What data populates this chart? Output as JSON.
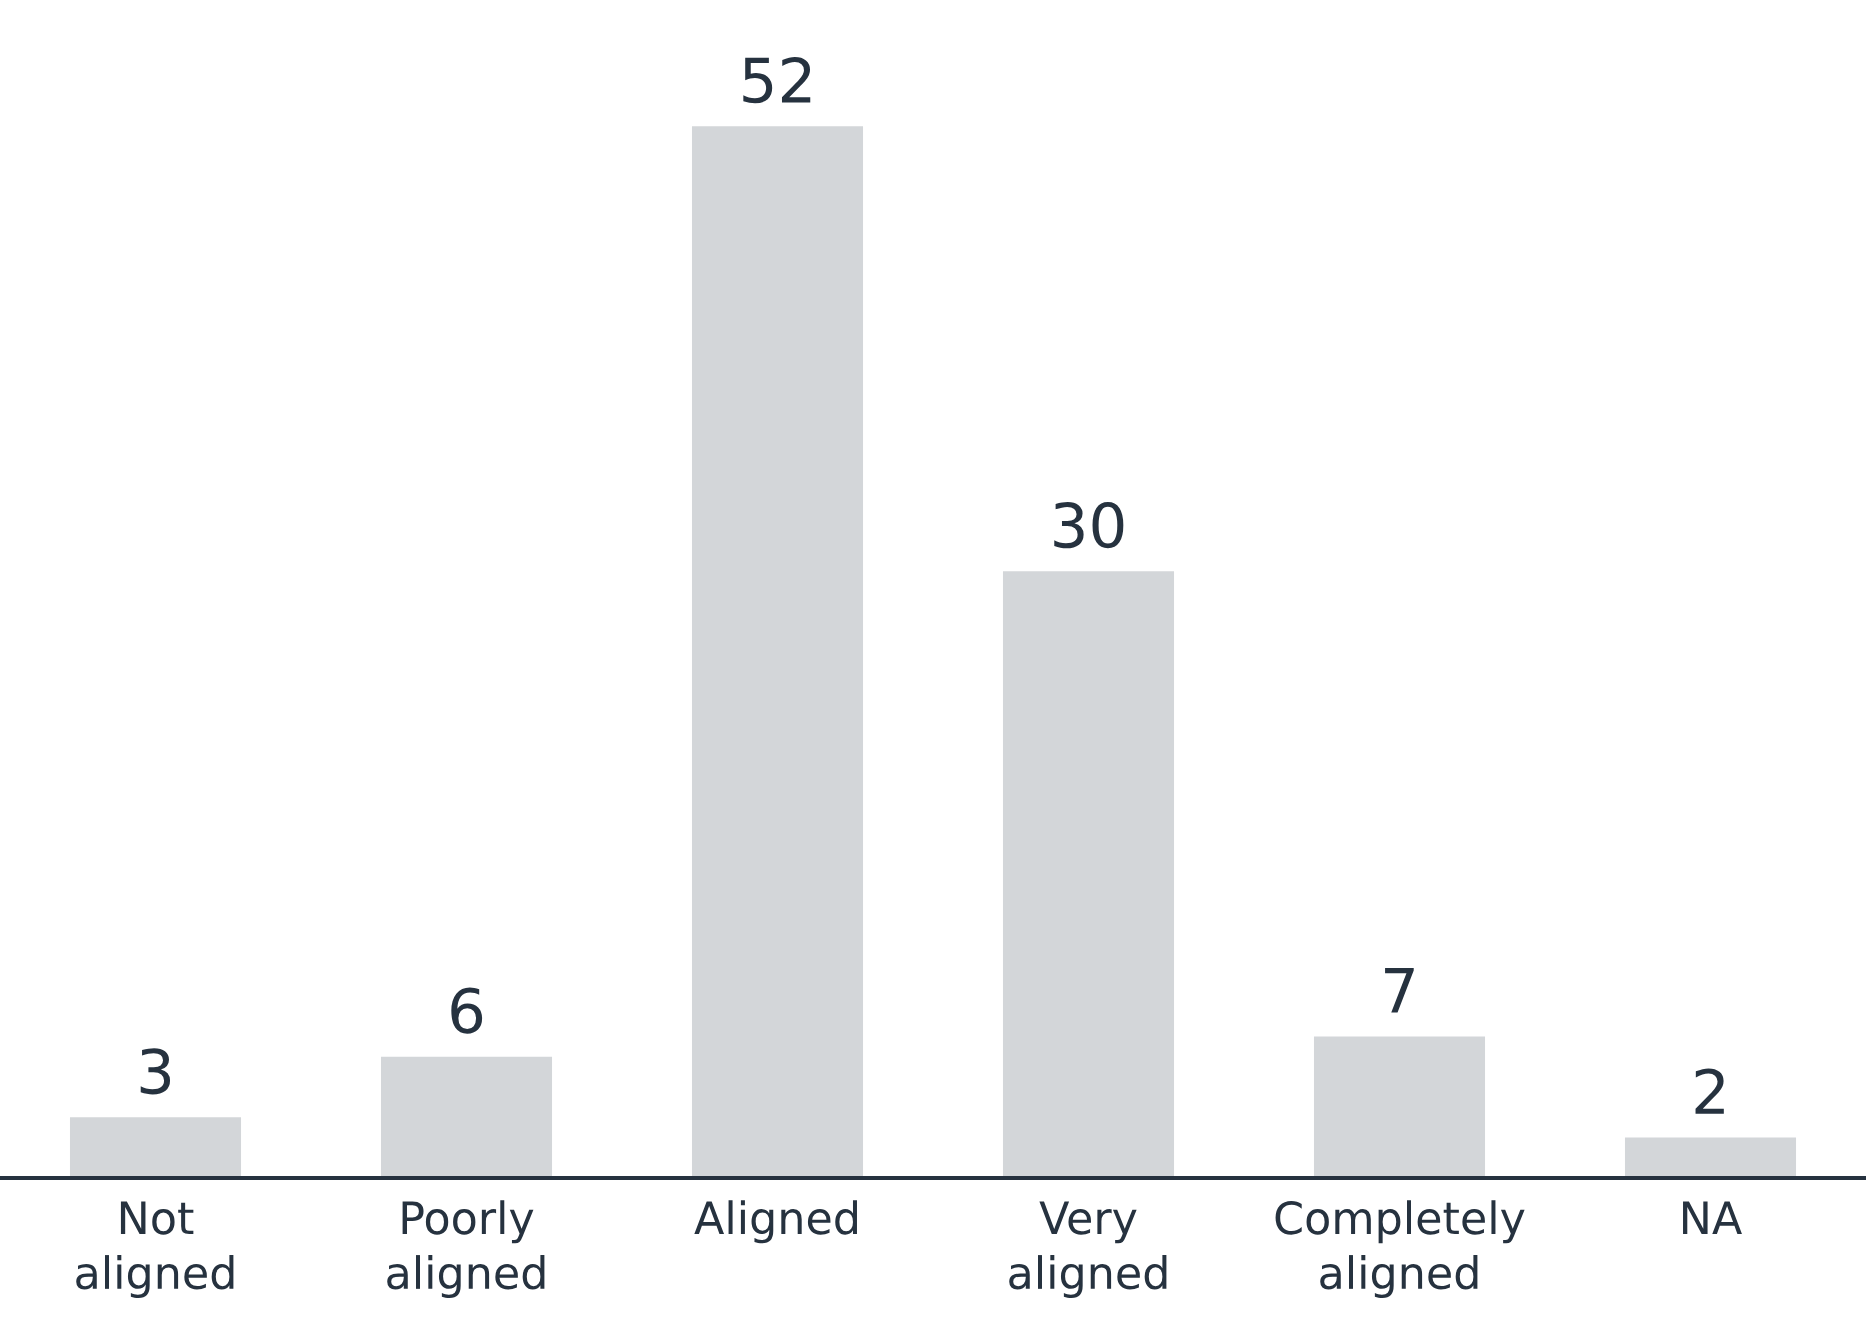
{
  "chart_data": {
    "type": "bar",
    "categories": [
      "Not\naligned",
      "Poorly\naligned",
      "Aligned",
      "Very\naligned",
      "Completely\naligned",
      "NA"
    ],
    "values": [
      3,
      6,
      52,
      30,
      7,
      2
    ],
    "color": "#d3d6d9",
    "data_labels": true,
    "grid": false,
    "legend": false
  }
}
